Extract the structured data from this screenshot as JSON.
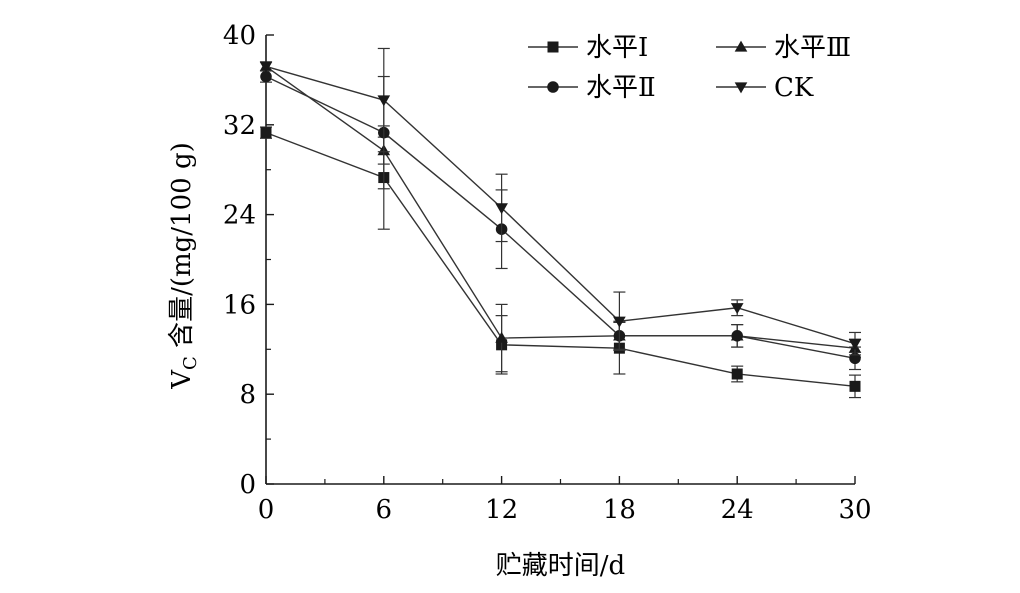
{
  "chart_data": {
    "type": "line",
    "title": "",
    "xlabel": "贮藏时间/d",
    "ylabel_main": "V",
    "ylabel_sub": "C",
    "ylabel_rest": " 含量/(mg/100 g)",
    "x": [
      0,
      6,
      12,
      18,
      24,
      30
    ],
    "x_tick_labels": [
      "0",
      "6",
      "12",
      "18",
      "24",
      "30"
    ],
    "xlim": [
      0,
      30
    ],
    "ylim": [
      0,
      40
    ],
    "y_ticks": [
      0,
      8,
      16,
      24,
      32,
      40
    ],
    "y_tick_labels": [
      "0",
      "8",
      "16",
      "24",
      "32",
      "40"
    ],
    "grid": false,
    "legend_placement": "top-right",
    "series": [
      {
        "name": "水平Ⅰ",
        "marker": "square",
        "values": [
          31.3,
          27.3,
          12.4,
          12.1,
          9.8,
          8.7
        ],
        "errors": [
          0.5,
          4.6,
          2.6,
          2.3,
          0.7,
          1.0
        ]
      },
      {
        "name": "水平Ⅲ",
        "marker": "triangle-up",
        "values": [
          37.2,
          29.7,
          13.0,
          13.2,
          13.2,
          12.1
        ],
        "errors": [
          0.4,
          1.2,
          3.0,
          1.2,
          1.0,
          0.8
        ]
      },
      {
        "name": "水平Ⅱ",
        "marker": "circle",
        "values": [
          36.3,
          31.3,
          22.7,
          13.2,
          13.2,
          11.2
        ],
        "errors": [
          0.5,
          5.0,
          3.5,
          1.3,
          1.0,
          1.0
        ]
      },
      {
        "name": "CK",
        "marker": "triangle-down",
        "values": [
          37.2,
          34.2,
          24.6,
          14.5,
          15.7,
          12.5
        ],
        "errors": [
          0.4,
          4.6,
          3.0,
          2.6,
          0.7,
          1.0
        ]
      }
    ],
    "colors": {
      "ink": "#1a1a1a",
      "line": "#333333"
    }
  }
}
